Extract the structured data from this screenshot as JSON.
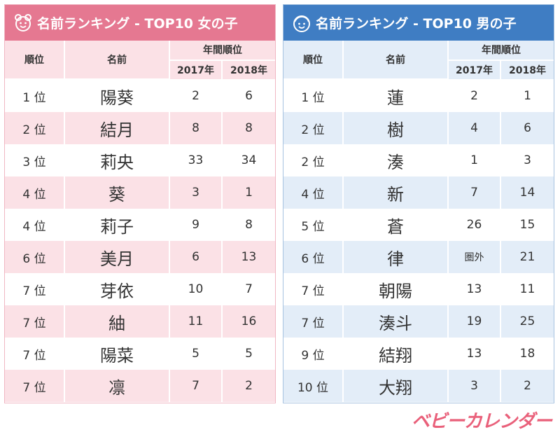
{
  "girls": {
    "title": "名前ランキング - TOP10 女の子",
    "headers": {
      "rank": "順位",
      "name": "名前",
      "annual": "年間順位",
      "y2017": "2017年",
      "y2018": "2018年"
    },
    "rows": [
      {
        "rank": "1 位",
        "name": "陽葵",
        "y2017": "2",
        "y2018": "6"
      },
      {
        "rank": "2 位",
        "name": "結月",
        "y2017": "8",
        "y2018": "8"
      },
      {
        "rank": "3 位",
        "name": "莉央",
        "y2017": "33",
        "y2018": "34"
      },
      {
        "rank": "4 位",
        "name": "葵",
        "y2017": "3",
        "y2018": "1"
      },
      {
        "rank": "4 位",
        "name": "莉子",
        "y2017": "9",
        "y2018": "8"
      },
      {
        "rank": "6 位",
        "name": "美月",
        "y2017": "6",
        "y2018": "13"
      },
      {
        "rank": "7 位",
        "name": "芽依",
        "y2017": "10",
        "y2018": "7"
      },
      {
        "rank": "7 位",
        "name": "紬",
        "y2017": "11",
        "y2018": "16"
      },
      {
        "rank": "7 位",
        "name": "陽菜",
        "y2017": "5",
        "y2018": "5"
      },
      {
        "rank": "7 位",
        "name": "凛",
        "y2017": "7",
        "y2018": "2"
      }
    ]
  },
  "boys": {
    "title": "名前ランキング - TOP10 男の子",
    "headers": {
      "rank": "順位",
      "name": "名前",
      "annual": "年間順位",
      "y2017": "2017年",
      "y2018": "2018年"
    },
    "rows": [
      {
        "rank": "1 位",
        "name": "蓮",
        "y2017": "2",
        "y2018": "1"
      },
      {
        "rank": "2 位",
        "name": "樹",
        "y2017": "4",
        "y2018": "6"
      },
      {
        "rank": "2 位",
        "name": "湊",
        "y2017": "1",
        "y2018": "3"
      },
      {
        "rank": "4 位",
        "name": "新",
        "y2017": "7",
        "y2018": "14"
      },
      {
        "rank": "5 位",
        "name": "蒼",
        "y2017": "26",
        "y2018": "15"
      },
      {
        "rank": "6 位",
        "name": "律",
        "y2017": "圏外",
        "y2018": "21"
      },
      {
        "rank": "7 位",
        "name": "朝陽",
        "y2017": "13",
        "y2018": "11"
      },
      {
        "rank": "7 位",
        "name": "湊斗",
        "y2017": "19",
        "y2018": "25"
      },
      {
        "rank": "9 位",
        "name": "結翔",
        "y2017": "13",
        "y2018": "18"
      },
      {
        "rank": "10 位",
        "name": "大翔",
        "y2017": "3",
        "y2018": "2"
      }
    ]
  },
  "logo": "ベビーカレンダー",
  "colors": {
    "girls_header": "#e57891",
    "girls_band": "#fbe1e6",
    "boys_header": "#3f7dc3",
    "boys_band": "#e3edf8",
    "logo": "#e9607a"
  },
  "icons": {
    "girls": "girl-face-icon",
    "boys": "boy-face-icon"
  }
}
